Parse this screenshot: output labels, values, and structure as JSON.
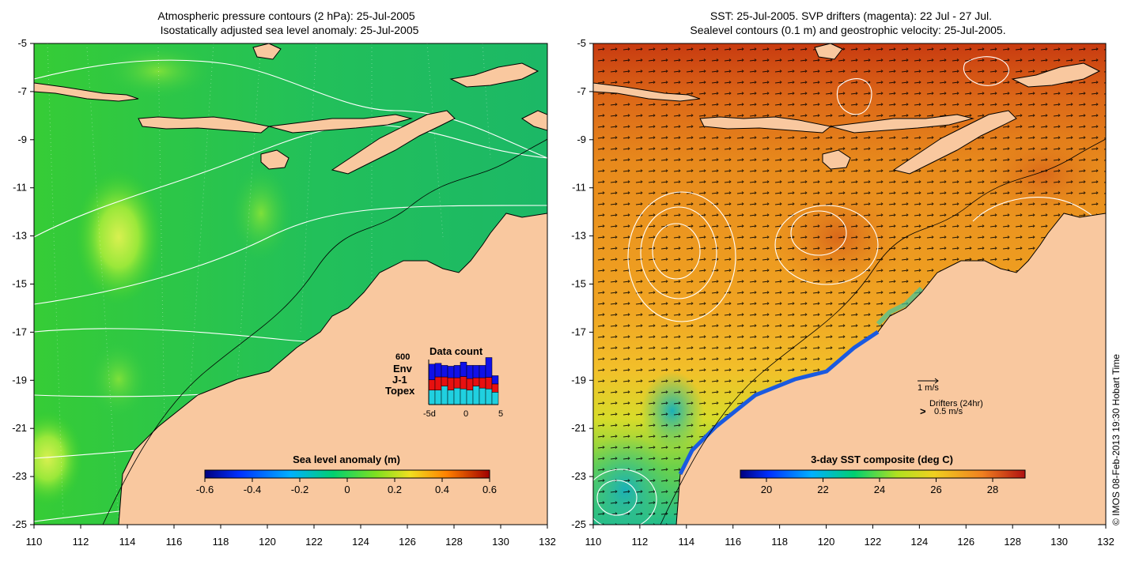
{
  "left_panel": {
    "title_line1": "Atmospheric pressure contours (2 hPa): 25-Jul-2005",
    "title_line2": "Isostatically adjusted sea level anomaly: 25-Jul-2005",
    "colorbar_title": "Sea level anomaly (m)",
    "colorbar_ticks": [
      "-0.6",
      "-0.4",
      "-0.2",
      "0",
      "0.2",
      "0.4",
      "0.6"
    ],
    "data_count": {
      "title": "Data count",
      "top_value": "600",
      "legend": [
        {
          "label": "Env",
          "color": "#1010e8"
        },
        {
          "label": "J-1",
          "color": "#e81010"
        },
        {
          "label": "Topex",
          "color": "#20d0e0"
        }
      ],
      "xticks": [
        "-5d",
        "0",
        "5"
      ],
      "bars": [
        {
          "topex": 0.35,
          "j1": 0.25,
          "env": 0.38
        },
        {
          "topex": 0.35,
          "j1": 0.32,
          "env": 0.33
        },
        {
          "topex": 0.45,
          "j1": 0.22,
          "env": 0.28
        },
        {
          "topex": 0.35,
          "j1": 0.3,
          "env": 0.28
        },
        {
          "topex": 0.4,
          "j1": 0.25,
          "env": 0.3
        },
        {
          "topex": 0.38,
          "j1": 0.3,
          "env": 0.35
        },
        {
          "topex": 0.35,
          "j1": 0.28,
          "env": 0.32
        },
        {
          "topex": 0.45,
          "j1": 0.2,
          "env": 0.3
        },
        {
          "topex": 0.4,
          "j1": 0.25,
          "env": 0.3
        },
        {
          "topex": 0.38,
          "j1": 0.28,
          "env": 0.48
        },
        {
          "topex": 0.3,
          "j1": 0.2,
          "env": 0.2
        }
      ]
    }
  },
  "right_panel": {
    "title_line1": "SST: 25-Jul-2005. SVP drifters (magenta): 22 Jul - 27 Jul.",
    "title_line2": "Sealevel contours (0.1 m) and geostrophic velocity: 25-Jul-2005.",
    "colorbar_title": "3-day SST composite (deg C)",
    "colorbar_ticks": [
      "20",
      "22",
      "24",
      "26",
      "28"
    ],
    "velocity_scale_label": "1 m/s",
    "drifters_label": "Drifters (24hr)",
    "drifters_speed_label": "0.5 m/s",
    "drifter_symbol": ">"
  },
  "axes": {
    "x_ticks": [
      "110",
      "112",
      "114",
      "116",
      "118",
      "120",
      "122",
      "124",
      "126",
      "128",
      "130",
      "132"
    ],
    "y_ticks": [
      "-5",
      "-7",
      "-9",
      "-11",
      "-13",
      "-15",
      "-17",
      "-19",
      "-21",
      "-23",
      "-25"
    ],
    "lon_range": [
      110,
      132
    ],
    "lat_range": [
      -25,
      -5
    ]
  },
  "credit": "© IMOS 08-Feb-2013 19:30 Hobart Time"
}
